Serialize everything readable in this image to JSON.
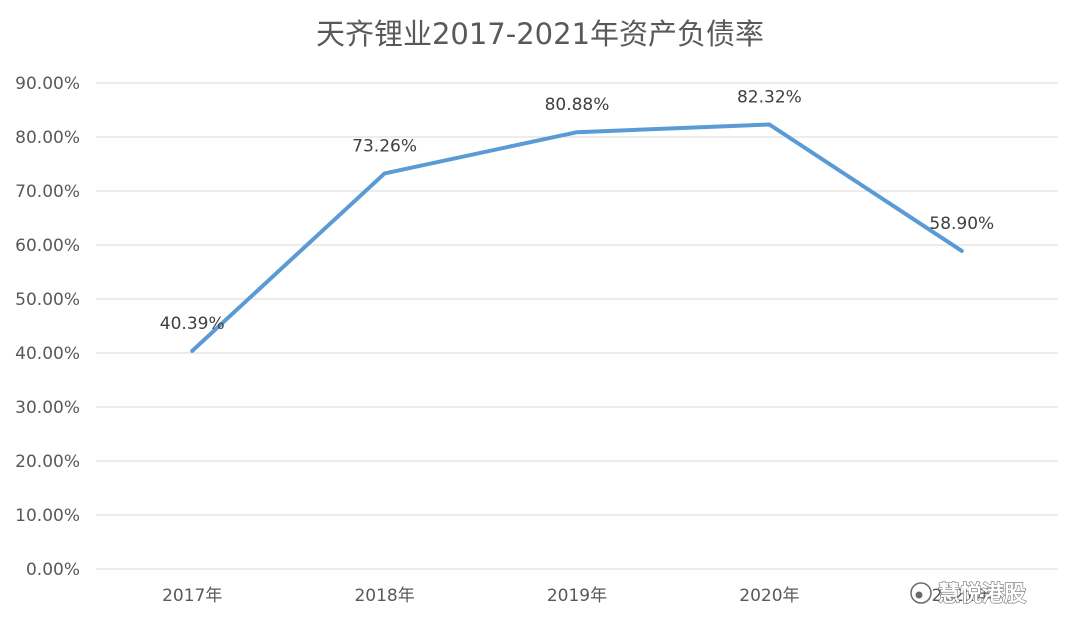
{
  "chart_data": {
    "type": "line",
    "title": "天齐锂业2017-2021年资产负债率",
    "categories": [
      "2017年",
      "2018年",
      "2019年",
      "2020年",
      "2021年"
    ],
    "series": [
      {
        "values": [
          40.39,
          73.26,
          80.88,
          82.32,
          58.9
        ],
        "labels": [
          "40.39%",
          "73.26%",
          "80.88%",
          "82.32%",
          "58.90%"
        ]
      }
    ],
    "ylim": [
      0,
      90
    ],
    "yticks": [
      "0.00%",
      "10.00%",
      "20.00%",
      "30.00%",
      "40.00%",
      "50.00%",
      "60.00%",
      "70.00%",
      "80.00%",
      "90.00%"
    ],
    "grid": true,
    "color": "#5b9bd5"
  },
  "watermark": {
    "text": "慧悦港股"
  }
}
